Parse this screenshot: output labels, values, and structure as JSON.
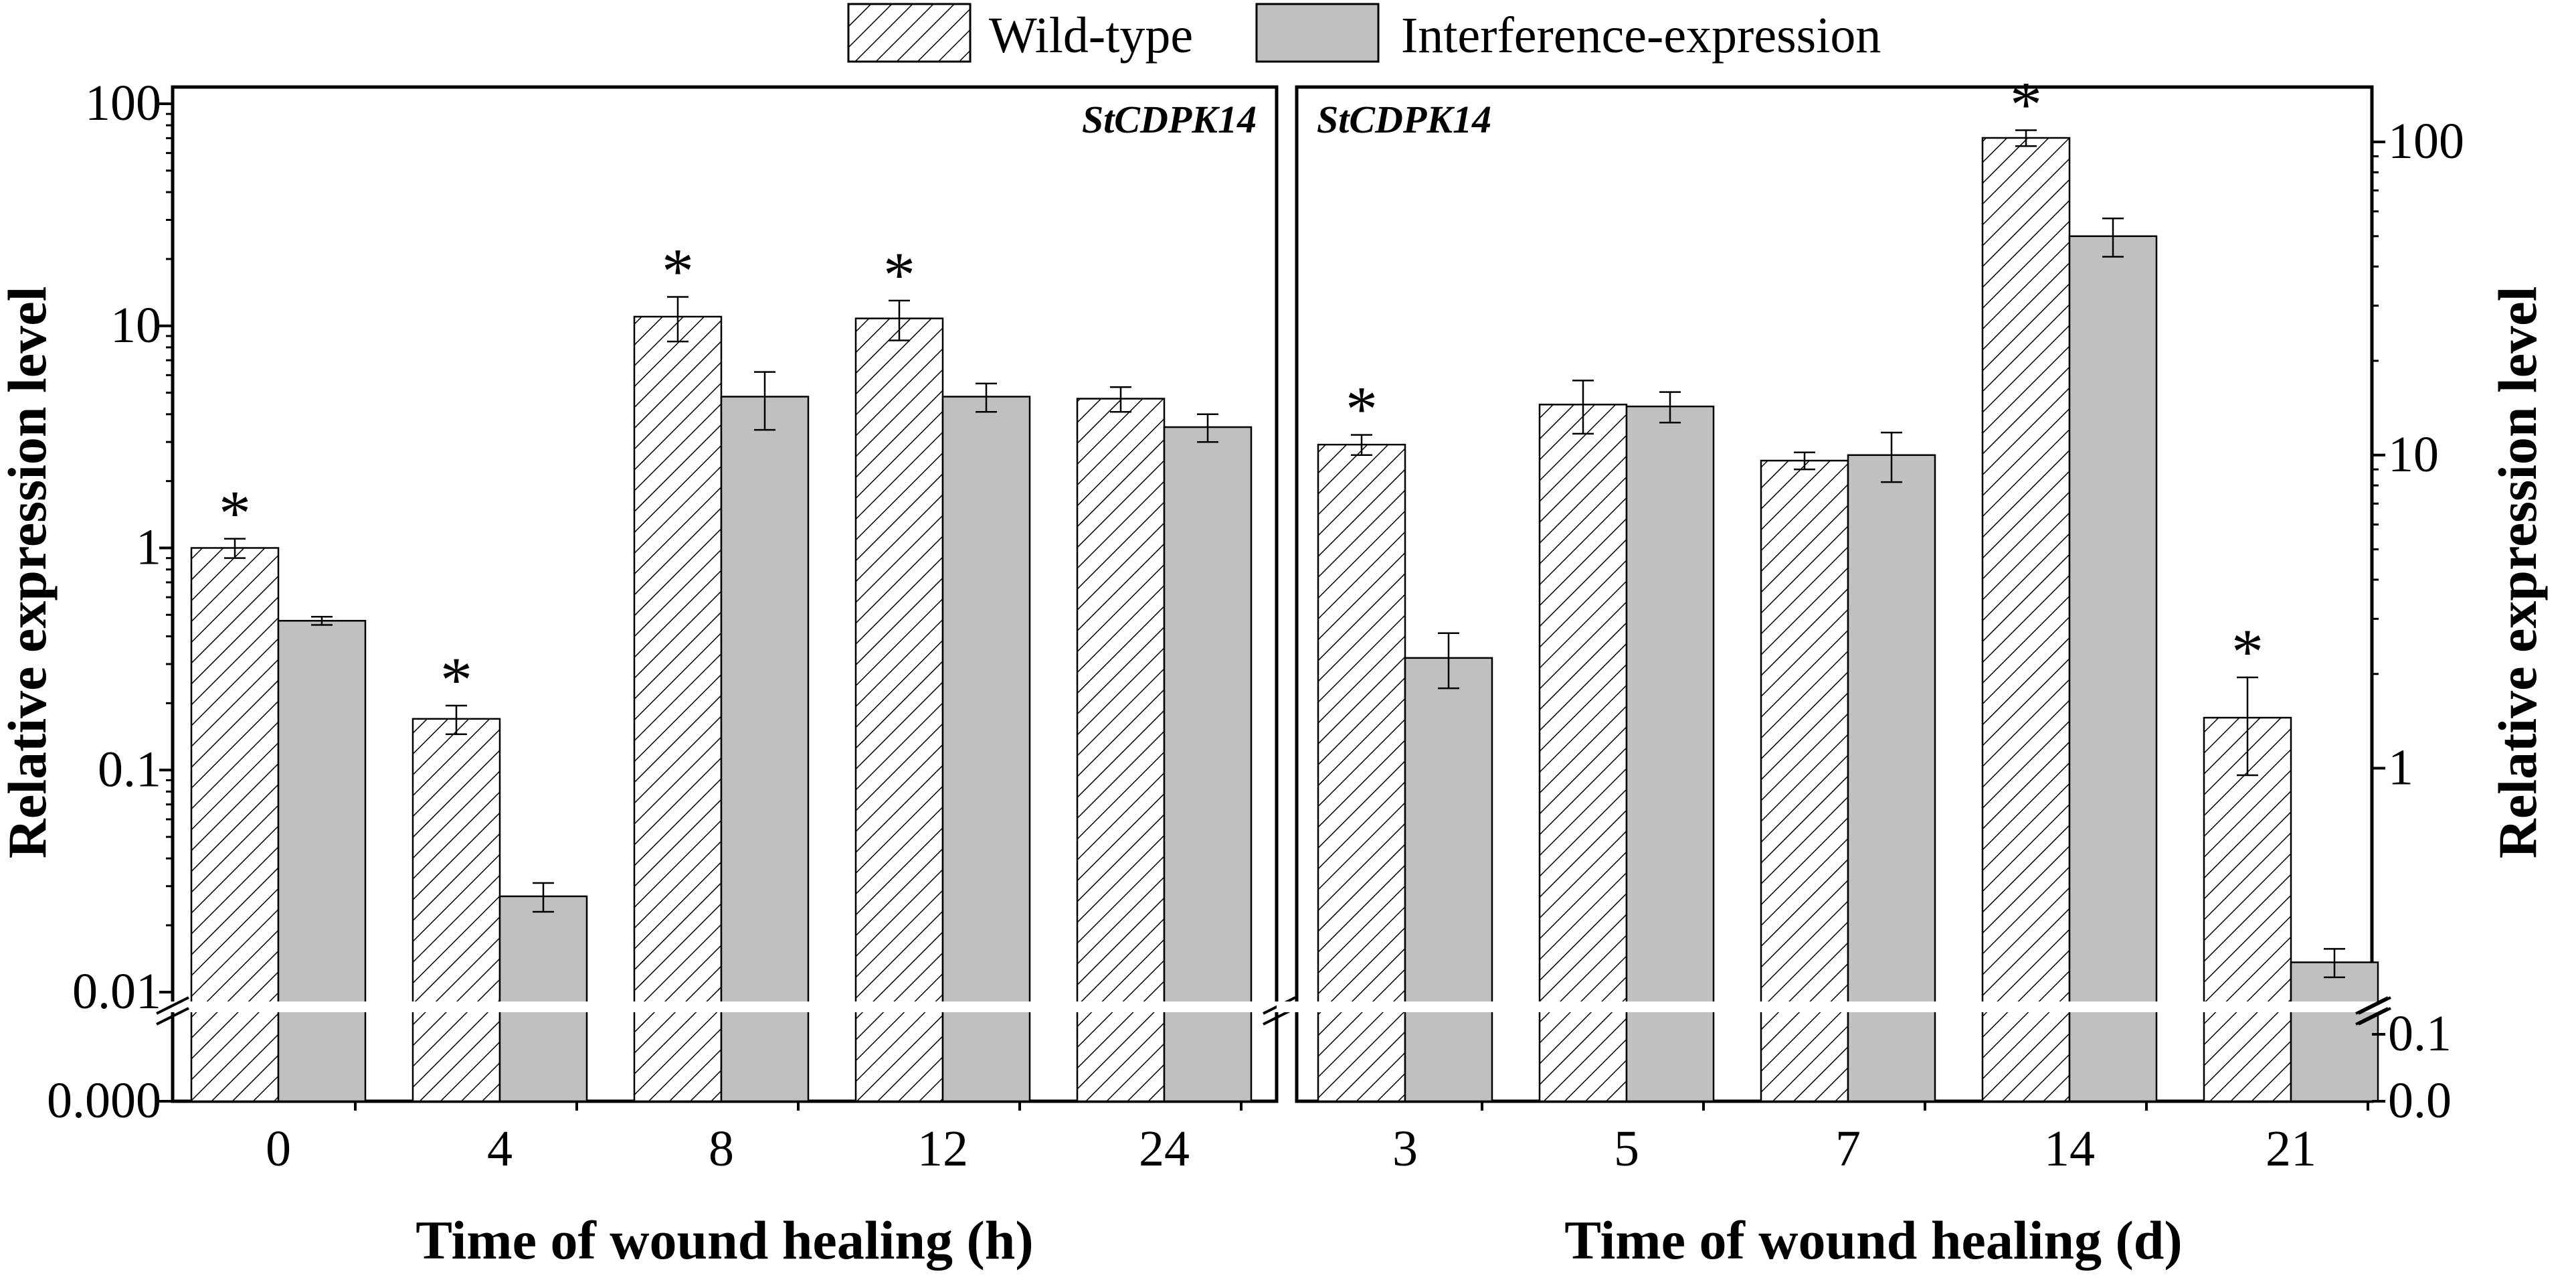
{
  "legend": [
    {
      "label": "Wild-type",
      "pattern": "hatch"
    },
    {
      "label": "Interference-expression",
      "pattern": "solid"
    }
  ],
  "colors": {
    "bar_solid": "#c0c0c0",
    "edge": "#000000",
    "break_gap": "#ffffff"
  },
  "chart_data": [
    {
      "type": "bar",
      "scale": "log-broken",
      "gene": "StCDPK14",
      "categories": [
        "0",
        "4",
        "8",
        "12",
        "24"
      ],
      "xlabel": "Time of wound healing (h)",
      "ylabel": "Relative expression level",
      "ylim": [
        0.01,
        100
      ],
      "yticks": [
        "100",
        "10",
        "1",
        "0.1",
        "0.01"
      ],
      "lower_ticks": [
        "0.000"
      ],
      "series": [
        {
          "name": "Wild-type",
          "values": [
            1.0,
            0.17,
            11.0,
            10.8,
            4.7
          ],
          "errors": [
            0.1,
            0.025,
            2.5,
            2.2,
            0.6
          ]
        },
        {
          "name": "Interference-expression",
          "values": [
            0.47,
            0.027,
            4.8,
            4.8,
            3.5
          ],
          "errors": [
            0.02,
            0.004,
            1.4,
            0.7,
            0.5
          ]
        }
      ],
      "significant": [
        true,
        true,
        true,
        true,
        false
      ]
    },
    {
      "type": "bar",
      "scale": "log-broken",
      "gene": "StCDPK14",
      "categories": [
        "3",
        "5",
        "7",
        "14",
        "21"
      ],
      "xlabel": "Time of wound healing (d)",
      "ylabel": "Relative expression level",
      "ylim": [
        0.2,
        140
      ],
      "yticks": [
        "100",
        "10",
        "1"
      ],
      "lower_ticks": [
        "0.1",
        "0.0"
      ],
      "series": [
        {
          "name": "Wild-type",
          "values": [
            10.8,
            14.5,
            9.6,
            103,
            1.45
          ],
          "errors": [
            0.8,
            2.8,
            0.6,
            6,
            0.5
          ]
        },
        {
          "name": "Interference-expression",
          "values": [
            2.25,
            14.3,
            10.0,
            50,
            0.24
          ],
          "errors": [
            0.45,
            1.6,
            1.8,
            7,
            0.025
          ]
        }
      ],
      "significant": [
        true,
        false,
        false,
        true,
        true
      ]
    }
  ]
}
